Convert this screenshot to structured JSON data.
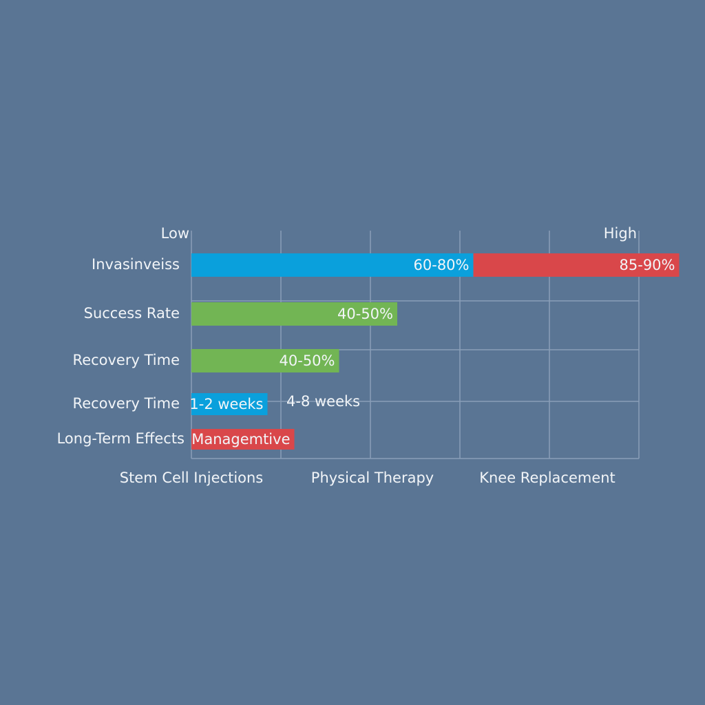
{
  "chart_data": {
    "type": "stacked-bar-h",
    "xlim": [
      0,
      100
    ],
    "xticks": [
      {
        "value": 0,
        "label": "Low"
      },
      {
        "value": 100,
        "label": "High"
      }
    ],
    "xgrid": [
      20,
      40,
      60,
      80,
      100
    ],
    "rows": [
      {
        "label": "Invasinveiss",
        "segments": [
          {
            "color": "#0aa0dc",
            "value": 63,
            "value_label": "60-80%"
          },
          {
            "color": "#d9474a",
            "value": 46,
            "value_label": "85-90%"
          }
        ]
      },
      {
        "label": "Success Rate",
        "segments": [
          {
            "color": "#72b554",
            "value": 46,
            "value_label": "40-50%"
          }
        ]
      },
      {
        "label": "Recovery Time",
        "segments": [
          {
            "color": "#72b554",
            "value": 33,
            "value_label": "40-50%"
          }
        ]
      },
      {
        "label": "Recovery Time",
        "segments": [
          {
            "color": "#0aa0dc",
            "value": 17,
            "value_label": "1-2 weeks"
          }
        ],
        "annotation": "4-8 weeks"
      },
      {
        "label": "Long-Term Effects",
        "segments": [
          {
            "color": "#d9474a",
            "value": 23,
            "value_label": "Managemtive"
          }
        ]
      }
    ],
    "x_labels": [
      "Stem Cell Injections",
      "Physical Therapy",
      "Knee Replacement"
    ]
  }
}
